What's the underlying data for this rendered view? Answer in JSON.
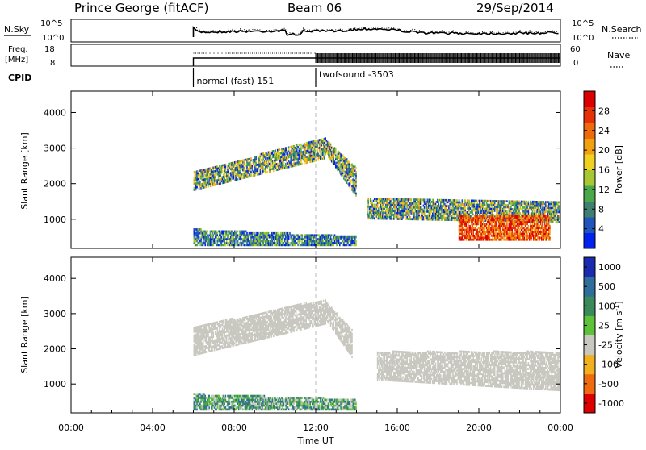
{
  "header": {
    "station": "Prince George (fitACF)",
    "beam": "Beam 06",
    "date": "29/Sep/2014"
  },
  "noise_panel": {
    "left_label": "N.Sky",
    "left_ticks": [
      "10^5",
      "10^0"
    ],
    "right_ticks": [
      "10^5",
      "10^0"
    ],
    "right_label": "N.Search"
  },
  "freq_panel": {
    "left_label_1": "Freq.",
    "left_label_2": "[MHz]",
    "left_ticks": [
      "18",
      "8"
    ],
    "right_ticks": [
      "60",
      "0"
    ],
    "right_label": "Nave"
  },
  "cpid": {
    "label": "CPID",
    "segments": [
      {
        "name": "normal (fast) 151",
        "start_hour": 6.0
      },
      {
        "name": "twofsound -3503",
        "start_hour": 12.0
      }
    ]
  },
  "x_axis": {
    "label": "Time UT",
    "range_hours": [
      0,
      24
    ],
    "tick_hours": [
      0,
      4,
      8,
      12,
      16,
      20,
      24
    ],
    "tick_labels": [
      "00:00",
      "04:00",
      "08:00",
      "12:00",
      "16:00",
      "20:00",
      "00:00"
    ]
  },
  "chart_data": [
    {
      "type": "heatmap",
      "name": "power",
      "ylabel": "Slant Range [km]",
      "ylim": [
        180,
        4600
      ],
      "yticks": [
        1000,
        2000,
        3000,
        4000
      ],
      "colorbar": {
        "label": "Power [dB]",
        "range": [
          0,
          32
        ],
        "ticks": [
          4,
          8,
          12,
          16,
          20,
          24,
          28
        ],
        "colors": [
          "#0022ee",
          "#2255bb",
          "#3f7f6f",
          "#4aa84a",
          "#a8c832",
          "#f0d020",
          "#f0a010",
          "#ee6a0a",
          "#e63008",
          "#dd0000"
        ]
      },
      "regions": [
        {
          "t0": 6.0,
          "t1": 12.5,
          "r_lo0": 1800,
          "r_hi0": 2300,
          "r_lo1": 2700,
          "r_hi1": 3300,
          "level": "mid"
        },
        {
          "t0": 12.5,
          "t1": 14.0,
          "r_lo0": 2800,
          "r_hi0": 3200,
          "r_lo1": 1600,
          "r_hi1": 2400,
          "level": "mid"
        },
        {
          "t0": 14.5,
          "t1": 24.0,
          "r_lo0": 1000,
          "r_hi0": 1600,
          "r_lo1": 900,
          "r_hi1": 1500,
          "level": "mid"
        },
        {
          "t0": 19.0,
          "t1": 23.5,
          "r_lo0": 400,
          "r_hi0": 1100,
          "r_lo1": 400,
          "r_hi1": 1100,
          "level": "high"
        },
        {
          "t0": 6.0,
          "t1": 14.0,
          "r_lo0": 250,
          "r_hi0": 700,
          "r_lo1": 250,
          "r_hi1": 500,
          "level": "low"
        }
      ]
    },
    {
      "type": "heatmap",
      "name": "velocity",
      "ylabel": "Slant Range [km]",
      "ylim": [
        180,
        4600
      ],
      "yticks": [
        1000,
        2000,
        3000,
        4000
      ],
      "colorbar": {
        "label": "Velocity [m s^-1]",
        "tick_labels": [
          "1000",
          "500",
          "100",
          "25",
          "-25",
          "-100",
          "-500",
          "-1000"
        ],
        "colors": [
          "#1a2bb0",
          "#2f6e9a",
          "#3b8a5a",
          "#5dc23a",
          "#c8c8c0",
          "#f0b020",
          "#f06a10",
          "#dd0000"
        ]
      },
      "regions": [
        {
          "t0": 6.0,
          "t1": 12.5,
          "r_lo0": 1800,
          "r_hi0": 2600,
          "r_lo1": 2700,
          "r_hi1": 3400,
          "level": "ground"
        },
        {
          "t0": 12.5,
          "t1": 13.8,
          "r_lo0": 2800,
          "r_hi0": 3300,
          "r_lo1": 1700,
          "r_hi1": 2500,
          "level": "ground"
        },
        {
          "t0": 15.0,
          "t1": 24.0,
          "r_lo0": 1100,
          "r_hi0": 1900,
          "r_lo1": 800,
          "r_hi1": 1900,
          "level": "ground"
        },
        {
          "t0": 6.0,
          "t1": 14.0,
          "r_lo0": 250,
          "r_hi0": 700,
          "r_lo1": 250,
          "r_hi1": 550,
          "level": "positive"
        }
      ]
    }
  ]
}
